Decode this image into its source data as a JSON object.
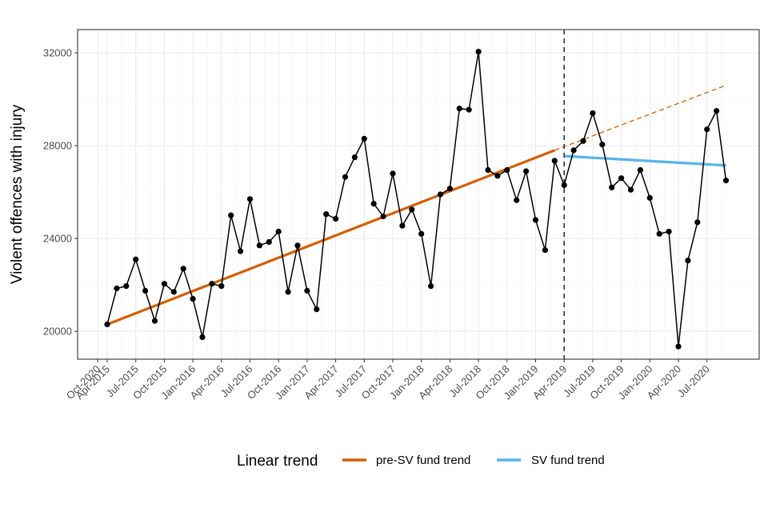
{
  "chart_data": {
    "type": "line",
    "title": "",
    "xlabel": "",
    "ylabel": "Violent offences with injury",
    "ylim": [
      18800,
      33000
    ],
    "yticks": [
      20000,
      24000,
      28000,
      32000
    ],
    "grid": true,
    "x_tick_labels": [
      "Apr-2015",
      "Jul-2015",
      "Oct-2015",
      "Jan-2016",
      "Apr-2016",
      "Jul-2016",
      "Oct-2016",
      "Jan-2017",
      "Apr-2017",
      "Jul-2017",
      "Oct-2017",
      "Jan-2018",
      "Apr-2018",
      "Jul-2018",
      "Oct-2018",
      "Jan-2019",
      "Apr-2019",
      "Jul-2019",
      "Oct-2019",
      "Jan-2020",
      "Apr-2020",
      "Jul-2020",
      "Oct-2020"
    ],
    "x": [
      "Apr-2015",
      "May-2015",
      "Jun-2015",
      "Jul-2015",
      "Aug-2015",
      "Sep-2015",
      "Oct-2015",
      "Nov-2015",
      "Dec-2015",
      "Jan-2016",
      "Feb-2016",
      "Mar-2016",
      "Apr-2016",
      "May-2016",
      "Jun-2016",
      "Jul-2016",
      "Aug-2016",
      "Sep-2016",
      "Oct-2016",
      "Nov-2016",
      "Dec-2016",
      "Jan-2017",
      "Feb-2017",
      "Mar-2017",
      "Apr-2017",
      "May-2017",
      "Jun-2017",
      "Jul-2017",
      "Aug-2017",
      "Sep-2017",
      "Oct-2017",
      "Nov-2017",
      "Dec-2017",
      "Jan-2018",
      "Feb-2018",
      "Mar-2018",
      "Apr-2018",
      "May-2018",
      "Jun-2018",
      "Jul-2018",
      "Aug-2018",
      "Sep-2018",
      "Oct-2018",
      "Nov-2018",
      "Dec-2018",
      "Jan-2019",
      "Feb-2019",
      "Mar-2019",
      "Apr-2019",
      "May-2019",
      "Jun-2019",
      "Jul-2019",
      "Aug-2019",
      "Sep-2019",
      "Oct-2019",
      "Nov-2019",
      "Dec-2019",
      "Jan-2020",
      "Feb-2020",
      "Mar-2020",
      "Apr-2020",
      "May-2020",
      "Jun-2020",
      "Jul-2020",
      "Aug-2020",
      "Sep-2020"
    ],
    "series": [
      {
        "values": [
          20300,
          21850,
          21950,
          23100,
          21750,
          20450,
          22050,
          21700,
          22700,
          21400,
          19750,
          22050,
          21950,
          25000,
          23450,
          25700,
          23700,
          23850,
          24300,
          21700,
          23700,
          21750,
          20950,
          25050,
          24850,
          26650,
          27500,
          28300,
          25500,
          24950,
          26800,
          24550,
          25250,
          24200,
          21950,
          25900,
          26150,
          29600,
          29550,
          32050,
          26950,
          26700,
          26950,
          25650,
          26900,
          24800,
          23500,
          27350,
          26300,
          27800,
          28200,
          29400,
          28050,
          26200,
          26600,
          26100,
          26950,
          25750,
          24200,
          24300,
          19350,
          23050,
          24700,
          28700,
          29500,
          26500
        ],
        "color": "#000000"
      }
    ],
    "trends": [
      {
        "name": "pre-SV fund trend",
        "color": "#D55E00",
        "from": [
          "Apr-2015",
          20300
        ],
        "to": [
          "Mar-2019",
          27800
        ],
        "projection_to": [
          "Sep-2020",
          30600
        ]
      },
      {
        "name": "SV fund trend",
        "color": "#56B4E9",
        "from": [
          "Apr-2019",
          27550
        ],
        "to": [
          "Sep-2020",
          27150
        ]
      }
    ],
    "vline": {
      "x": "Apr-2019",
      "style": "dashed"
    },
    "legend": {
      "title": "Linear trend",
      "placement": "bottom"
    }
  }
}
